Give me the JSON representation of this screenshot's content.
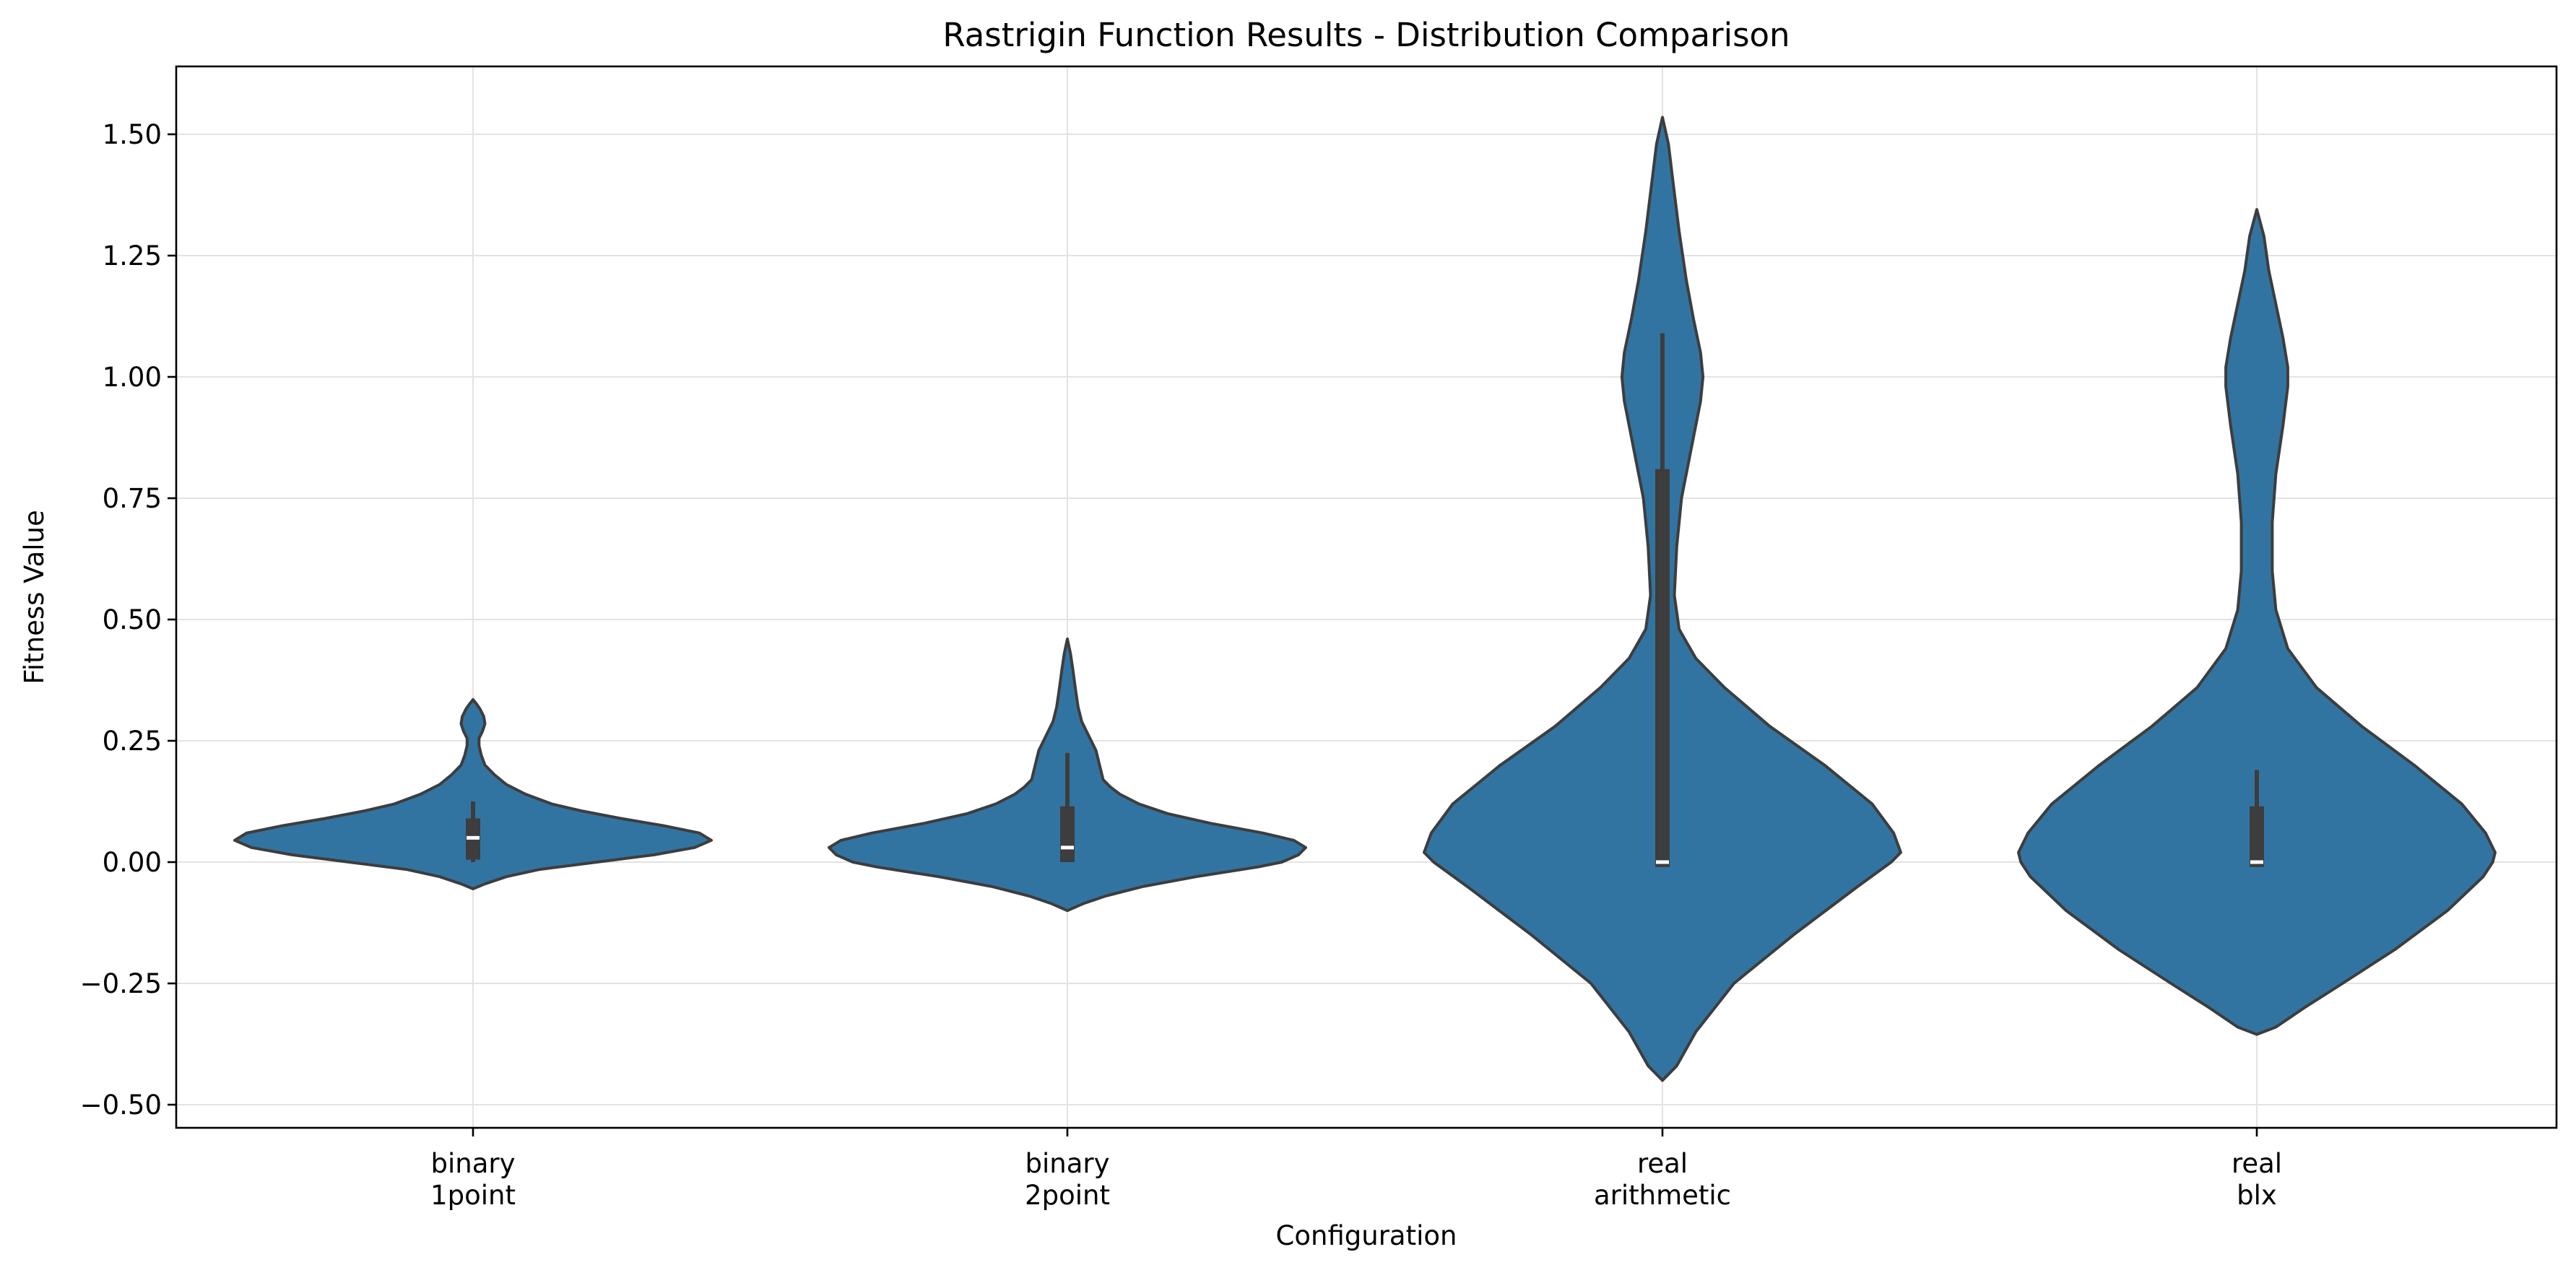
{
  "chart_data": {
    "type": "violin",
    "title": "Rastrigin Function Results - Distribution Comparison",
    "xlabel": "Configuration",
    "ylabel": "Fitness Value",
    "ylim": [
      -0.55,
      1.64
    ],
    "yticks": [
      -0.5,
      -0.25,
      0.0,
      0.25,
      0.5,
      0.75,
      1.0,
      1.25,
      1.5
    ],
    "ytick_labels": [
      "−0.50",
      "−0.25",
      "0.00",
      "0.25",
      "0.50",
      "0.75",
      "1.00",
      "1.25",
      "1.50"
    ],
    "grid": true,
    "categories": [
      {
        "line1": "binary",
        "line2": "1point"
      },
      {
        "line1": "binary",
        "line2": "2point"
      },
      {
        "line1": "real",
        "line2": "arithmetic"
      },
      {
        "line1": "real",
        "line2": "blx"
      }
    ],
    "violin_color": "#3274a1",
    "box_color": "#3d3d3d",
    "median_color": "#ffffff",
    "violins": [
      {
        "name": "binary 1point",
        "profile": [
          [
            -0.055,
            0.0
          ],
          [
            -0.045,
            0.05
          ],
          [
            -0.03,
            0.14
          ],
          [
            -0.015,
            0.28
          ],
          [
            0.0,
            0.52
          ],
          [
            0.015,
            0.76
          ],
          [
            0.03,
            0.93
          ],
          [
            0.045,
            1.0
          ],
          [
            0.06,
            0.95
          ],
          [
            0.075,
            0.8
          ],
          [
            0.09,
            0.62
          ],
          [
            0.105,
            0.46
          ],
          [
            0.12,
            0.33
          ],
          [
            0.14,
            0.22
          ],
          [
            0.16,
            0.14
          ],
          [
            0.18,
            0.09
          ],
          [
            0.2,
            0.05
          ],
          [
            0.22,
            0.035
          ],
          [
            0.24,
            0.025
          ],
          [
            0.255,
            0.025
          ],
          [
            0.27,
            0.04
          ],
          [
            0.285,
            0.05
          ],
          [
            0.3,
            0.045
          ],
          [
            0.315,
            0.03
          ],
          [
            0.325,
            0.016
          ],
          [
            0.335,
            0.0
          ]
        ],
        "q1": 0.005,
        "median": 0.05,
        "q3": 0.09,
        "whisker_low": 0.0,
        "whisker_high": 0.125
      },
      {
        "name": "binary 2point",
        "profile": [
          [
            -0.1,
            0.0
          ],
          [
            -0.085,
            0.07
          ],
          [
            -0.07,
            0.16
          ],
          [
            -0.05,
            0.32
          ],
          [
            -0.03,
            0.54
          ],
          [
            -0.01,
            0.8
          ],
          [
            0.0,
            0.9
          ],
          [
            0.015,
            0.97
          ],
          [
            0.03,
            1.0
          ],
          [
            0.045,
            0.95
          ],
          [
            0.06,
            0.82
          ],
          [
            0.08,
            0.6
          ],
          [
            0.1,
            0.42
          ],
          [
            0.12,
            0.3
          ],
          [
            0.14,
            0.22
          ],
          [
            0.155,
            0.18
          ],
          [
            0.17,
            0.15
          ],
          [
            0.19,
            0.14
          ],
          [
            0.21,
            0.13
          ],
          [
            0.23,
            0.12
          ],
          [
            0.26,
            0.09
          ],
          [
            0.29,
            0.06
          ],
          [
            0.32,
            0.045
          ],
          [
            0.36,
            0.033
          ],
          [
            0.4,
            0.022
          ],
          [
            0.43,
            0.013
          ],
          [
            0.46,
            0.0
          ]
        ],
        "q1": 0.0,
        "median": 0.03,
        "q3": 0.115,
        "whisker_low": 0.0,
        "whisker_high": 0.225
      },
      {
        "name": "real arithmetic",
        "profile": [
          [
            -0.45,
            0.0
          ],
          [
            -0.42,
            0.06
          ],
          [
            -0.35,
            0.14
          ],
          [
            -0.25,
            0.3
          ],
          [
            -0.15,
            0.55
          ],
          [
            -0.05,
            0.82
          ],
          [
            0.0,
            0.96
          ],
          [
            0.02,
            1.0
          ],
          [
            0.06,
            0.97
          ],
          [
            0.12,
            0.88
          ],
          [
            0.2,
            0.68
          ],
          [
            0.28,
            0.45
          ],
          [
            0.36,
            0.26
          ],
          [
            0.42,
            0.14
          ],
          [
            0.48,
            0.07
          ],
          [
            0.55,
            0.05
          ],
          [
            0.65,
            0.06
          ],
          [
            0.75,
            0.08
          ],
          [
            0.85,
            0.12
          ],
          [
            0.95,
            0.16
          ],
          [
            1.0,
            0.17
          ],
          [
            1.05,
            0.16
          ],
          [
            1.12,
            0.13
          ],
          [
            1.2,
            0.1
          ],
          [
            1.3,
            0.07
          ],
          [
            1.4,
            0.045
          ],
          [
            1.48,
            0.025
          ],
          [
            1.535,
            0.0
          ]
        ],
        "q1": -0.01,
        "median": 0.0,
        "q3": 0.81,
        "whisker_low": -0.01,
        "whisker_high": 1.09
      },
      {
        "name": "real blx",
        "profile": [
          [
            -0.355,
            0.0
          ],
          [
            -0.34,
            0.08
          ],
          [
            -0.3,
            0.2
          ],
          [
            -0.25,
            0.36
          ],
          [
            -0.18,
            0.58
          ],
          [
            -0.1,
            0.8
          ],
          [
            -0.03,
            0.95
          ],
          [
            0.0,
            0.99
          ],
          [
            0.02,
            1.0
          ],
          [
            0.06,
            0.96
          ],
          [
            0.12,
            0.86
          ],
          [
            0.2,
            0.66
          ],
          [
            0.28,
            0.44
          ],
          [
            0.36,
            0.25
          ],
          [
            0.44,
            0.13
          ],
          [
            0.52,
            0.08
          ],
          [
            0.6,
            0.065
          ],
          [
            0.7,
            0.065
          ],
          [
            0.8,
            0.08
          ],
          [
            0.9,
            0.11
          ],
          [
            0.98,
            0.13
          ],
          [
            1.02,
            0.13
          ],
          [
            1.08,
            0.11
          ],
          [
            1.15,
            0.08
          ],
          [
            1.22,
            0.05
          ],
          [
            1.29,
            0.03
          ],
          [
            1.345,
            0.0
          ]
        ],
        "q1": -0.01,
        "median": 0.0,
        "q3": 0.115,
        "whisker_low": -0.01,
        "whisker_high": 0.19
      }
    ]
  }
}
